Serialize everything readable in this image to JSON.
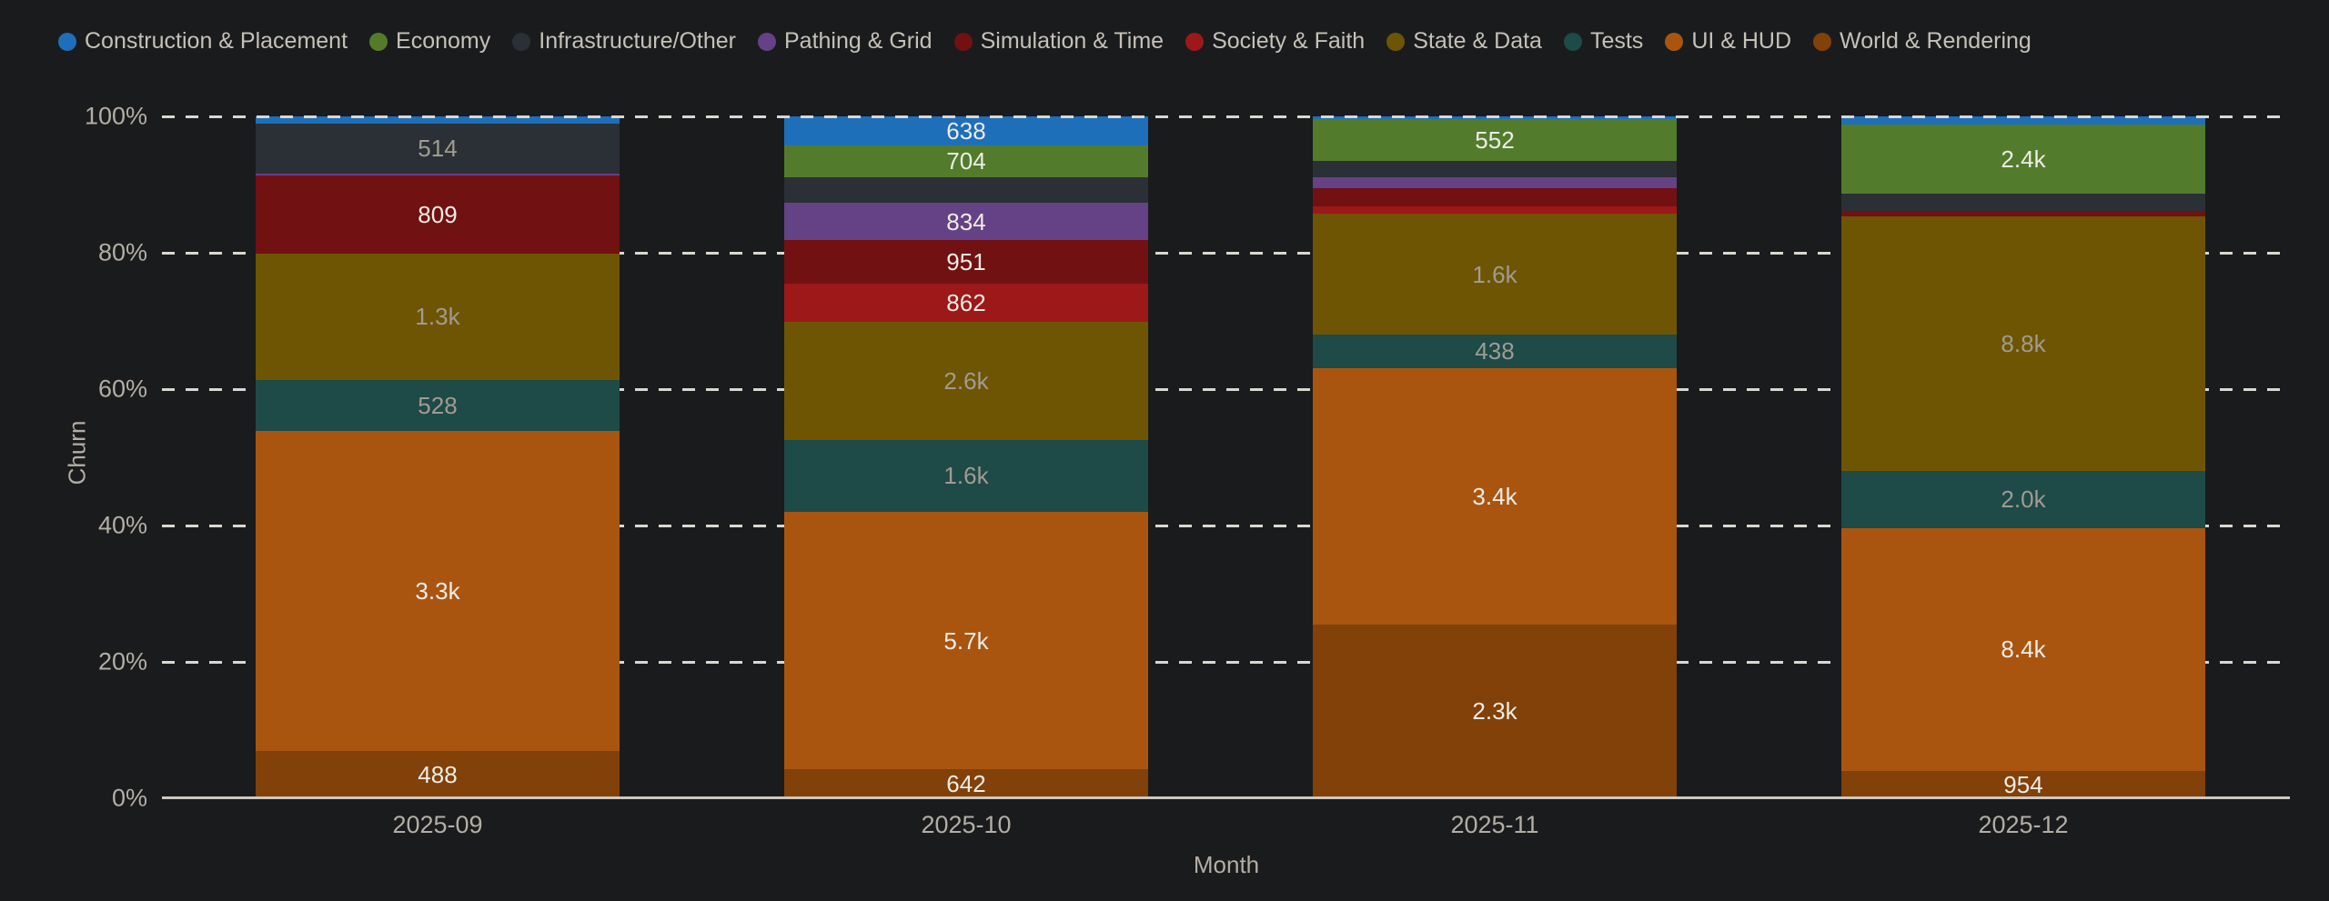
{
  "colors": {
    "background": "#1a1b1d",
    "grid_dash": "#dad7d1",
    "axis_line": "#ccc8c1",
    "tick_text": "#b3aea5",
    "legend_text": "#c5c1b8"
  },
  "chart_data": {
    "type": "bar",
    "stacked": true,
    "normalized_percent": true,
    "title": "",
    "xlabel": "Month",
    "ylabel": "Churn",
    "ylim": [
      0,
      100
    ],
    "grid": "horizontal-dashed",
    "legend_position": "top-left",
    "x_categories": [
      "2025-09",
      "2025-10",
      "2025-11",
      "2025-12"
    ],
    "y_ticks": [
      "100%",
      "80%",
      "60%",
      "40%",
      "20%",
      "0%"
    ],
    "series": [
      {
        "name": "Construction & Placement",
        "color": "#1e6fba",
        "label_color": "#efece7",
        "values": [
          75,
          638,
          36,
          283
        ],
        "labels": [
          "",
          "638",
          "",
          ""
        ]
      },
      {
        "name": "Economy",
        "color": "#527c2c",
        "label_color": "#efece7",
        "values": [
          0,
          704,
          552,
          2400
        ],
        "labels": [
          "",
          "704",
          "552",
          "2.4k"
        ]
      },
      {
        "name": "Infrastructure/Other",
        "color": "#2a3035",
        "label_color": "#a19b91",
        "values": [
          514,
          570,
          218,
          600
        ],
        "labels": [
          "514",
          "",
          "",
          ""
        ]
      },
      {
        "name": "Pathing & Grid",
        "color": "#654186",
        "label_color": "#efece7",
        "values": [
          19,
          834,
          146,
          0
        ],
        "labels": [
          "",
          "834",
          "",
          ""
        ]
      },
      {
        "name": "Simulation & Time",
        "color": "#721112",
        "label_color": "#efece7",
        "values": [
          809,
          951,
          243,
          190
        ],
        "labels": [
          "809",
          "951",
          "",
          ""
        ]
      },
      {
        "name": "Society & Faith",
        "color": "#9d1818",
        "label_color": "#efece7",
        "values": [
          0,
          862,
          97,
          0
        ],
        "labels": [
          "",
          "862",
          "",
          ""
        ]
      },
      {
        "name": "State & Data",
        "color": "#6e5503",
        "label_color": "#a19b91",
        "values": [
          1300,
          2600,
          1600,
          8800
        ],
        "labels": [
          "1.3k",
          "2.6k",
          "1.6k",
          "8.8k"
        ]
      },
      {
        "name": "Tests",
        "color": "#1e4a48",
        "label_color": "#a19b91",
        "values": [
          528,
          1600,
          438,
          2000
        ],
        "labels": [
          "528",
          "1.6k",
          "438",
          "2.0k"
        ]
      },
      {
        "name": "UI & HUD",
        "color": "#aa550f",
        "label_color": "#efece7",
        "values": [
          3300,
          5700,
          3400,
          8400
        ],
        "labels": [
          "3.3k",
          "5.7k",
          "3.4k",
          "8.4k"
        ]
      },
      {
        "name": "World & Rendering",
        "color": "#814108",
        "label_color": "#efece7",
        "values": [
          488,
          642,
          2300,
          954
        ],
        "labels": [
          "488",
          "642",
          "2.3k",
          "954"
        ]
      }
    ]
  }
}
